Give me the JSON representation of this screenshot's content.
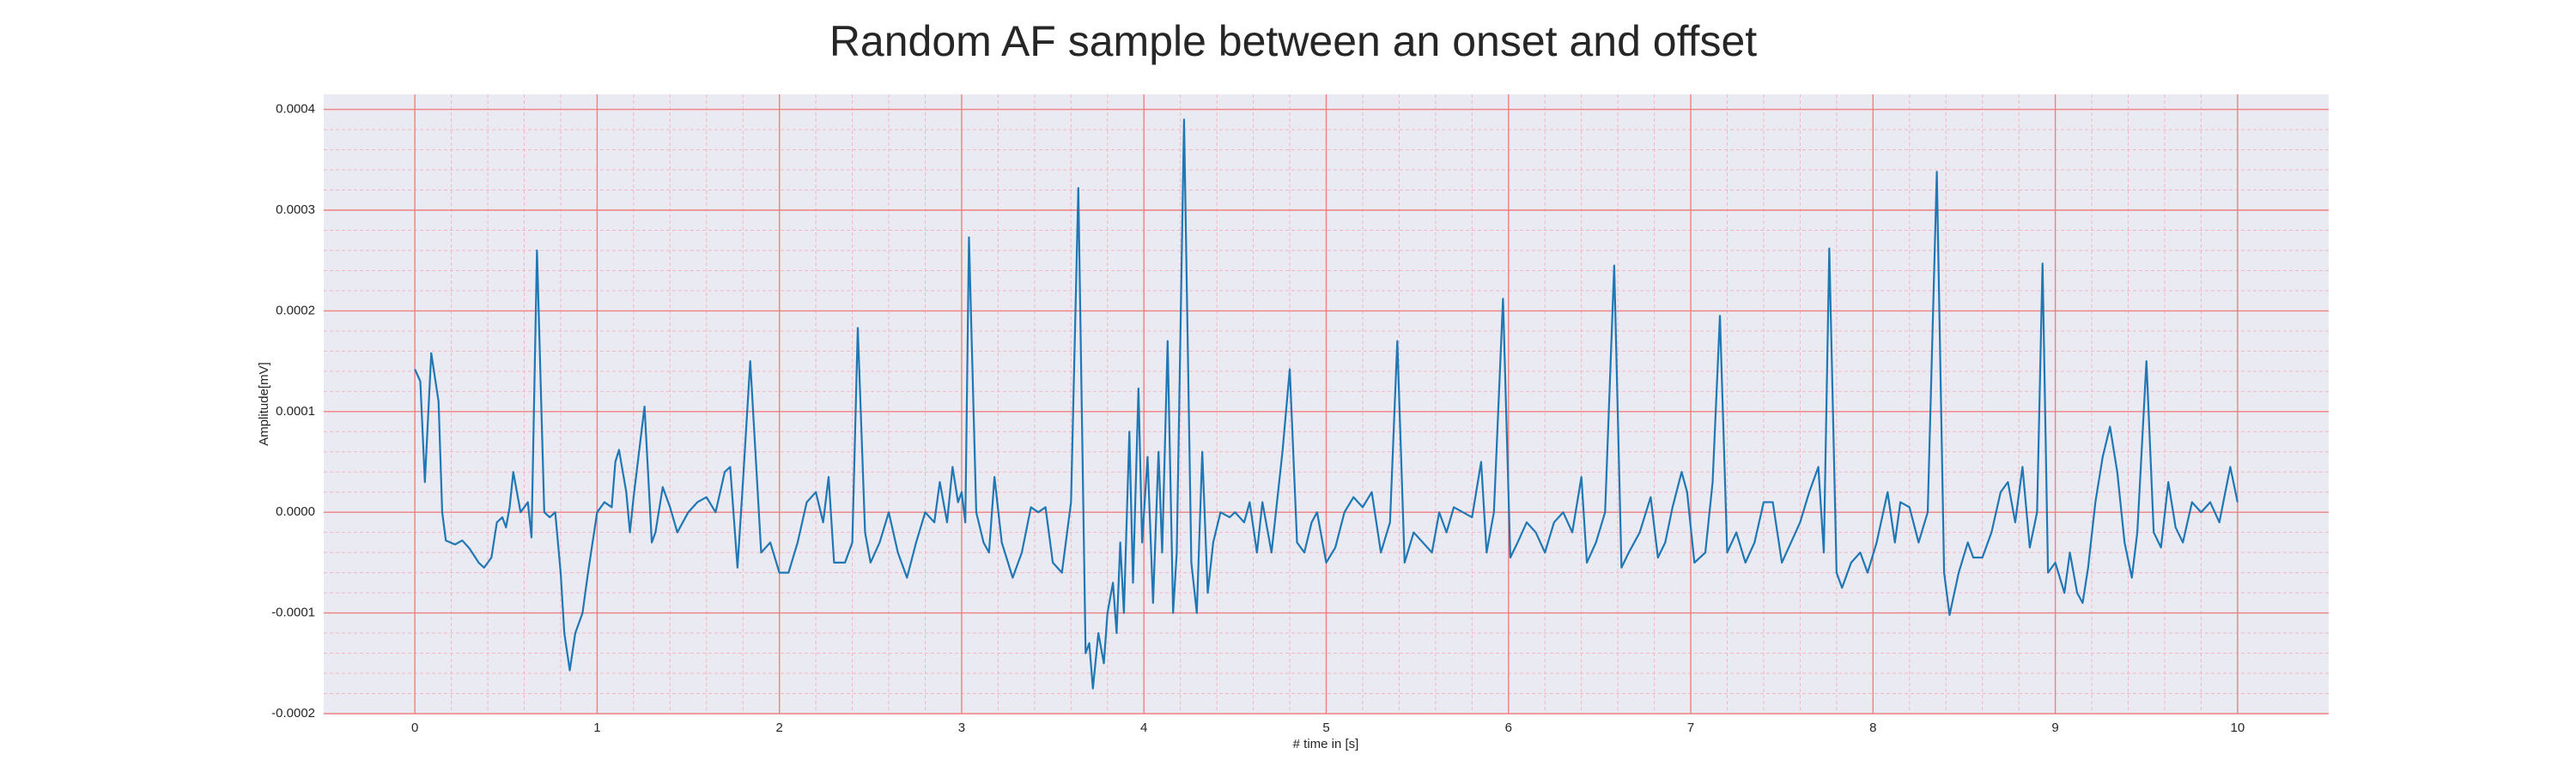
{
  "chart_data": {
    "type": "line",
    "title": "Random AF sample between an onset and offset",
    "xlabel": "# time in [s]",
    "ylabel": "Amplitude[mV]",
    "color": "#1f77b4",
    "grid": true,
    "minor_grid": true,
    "xlim": [
      -0.5,
      10.5
    ],
    "ylim": [
      -0.0002,
      0.000415
    ],
    "xticks": [
      0,
      1,
      2,
      3,
      4,
      5,
      6,
      7,
      8,
      9,
      10
    ],
    "yticks": [
      -0.0002,
      -0.0001,
      {
        "value": 0,
        "label": "0.0000"
      },
      0.0001,
      0.0002,
      0.0003,
      0.0004
    ],
    "x": [
      0,
      0.03,
      0.055,
      0.09,
      0.13,
      0.15,
      0.17,
      0.22,
      0.26,
      0.3,
      0.35,
      0.38,
      0.42,
      0.45,
      0.48,
      0.5,
      0.52,
      0.54,
      0.58,
      0.62,
      0.64,
      0.67,
      0.71,
      0.74,
      0.77,
      0.8,
      0.82,
      0.85,
      0.88,
      0.92,
      0.95,
      1.0,
      1.04,
      1.08,
      1.1,
      1.12,
      1.16,
      1.18,
      1.2,
      1.26,
      1.3,
      1.32,
      1.36,
      1.4,
      1.44,
      1.5,
      1.55,
      1.6,
      1.65,
      1.7,
      1.73,
      1.77,
      1.8,
      1.84,
      1.9,
      1.95,
      2.0,
      2.05,
      2.1,
      2.15,
      2.2,
      2.24,
      2.27,
      2.3,
      2.36,
      2.4,
      2.43,
      2.47,
      2.5,
      2.55,
      2.6,
      2.65,
      2.7,
      2.75,
      2.8,
      2.85,
      2.88,
      2.92,
      2.95,
      2.98,
      3.0,
      3.02,
      3.04,
      3.08,
      3.12,
      3.15,
      3.18,
      3.22,
      3.28,
      3.33,
      3.38,
      3.42,
      3.46,
      3.5,
      3.55,
      3.6,
      3.64,
      3.68,
      3.7,
      3.72,
      3.75,
      3.78,
      3.8,
      3.83,
      3.85,
      3.87,
      3.89,
      3.92,
      3.94,
      3.97,
      3.99,
      4.02,
      4.05,
      4.08,
      4.1,
      4.13,
      4.16,
      4.18,
      4.22,
      4.26,
      4.29,
      4.32,
      4.35,
      4.38,
      4.42,
      4.47,
      4.5,
      4.55,
      4.58,
      4.62,
      4.65,
      4.7,
      4.76,
      4.8,
      4.84,
      4.88,
      4.92,
      4.95,
      5.0,
      5.05,
      5.1,
      5.15,
      5.2,
      5.25,
      5.3,
      5.35,
      5.39,
      5.43,
      5.48,
      5.53,
      5.58,
      5.62,
      5.66,
      5.7,
      5.75,
      5.8,
      5.85,
      5.88,
      5.92,
      5.97,
      6.01,
      6.05,
      6.1,
      6.15,
      6.2,
      6.25,
      6.3,
      6.35,
      6.4,
      6.43,
      6.48,
      6.53,
      6.58,
      6.62,
      6.66,
      6.72,
      6.78,
      6.82,
      6.86,
      6.9,
      6.95,
      6.98,
      7.02,
      7.08,
      7.12,
      7.16,
      7.2,
      7.25,
      7.3,
      7.35,
      7.4,
      7.45,
      7.5,
      7.55,
      7.6,
      7.65,
      7.7,
      7.73,
      7.76,
      7.8,
      7.83,
      7.88,
      7.93,
      7.97,
      8.02,
      8.08,
      8.12,
      8.15,
      8.2,
      8.25,
      8.3,
      8.35,
      8.39,
      8.42,
      8.47,
      8.52,
      8.55,
      8.6,
      8.65,
      8.7,
      8.74,
      8.78,
      8.82,
      8.86,
      8.9,
      8.93,
      8.96,
      9.0,
      9.05,
      9.08,
      9.12,
      9.15,
      9.18,
      9.22,
      9.26,
      9.3,
      9.34,
      9.38,
      9.42,
      9.45,
      9.5,
      9.54,
      9.58,
      9.62,
      9.66,
      9.7,
      9.75,
      9.8,
      9.85,
      9.9,
      9.96,
      10.0
    ],
    "values": [
      0.000142,
      0.00013,
      3e-05,
      0.000158,
      0.00011,
      0,
      -2.8e-05,
      -3.2e-05,
      -2.8e-05,
      -3.6e-05,
      -5e-05,
      -5.5e-05,
      -4.5e-05,
      -1e-05,
      -5e-06,
      -1.5e-05,
      5e-06,
      4e-05,
      0,
      1e-05,
      -2.5e-05,
      0.00026,
      0,
      -5e-06,
      0,
      -6e-05,
      -0.00012,
      -0.000157,
      -0.00012,
      -0.0001,
      -6e-05,
      0,
      1e-05,
      5e-06,
      5e-05,
      6.2e-05,
      2e-05,
      -2e-05,
      1.5e-05,
      0.000105,
      -3e-05,
      -2e-05,
      2.5e-05,
      5e-06,
      -2e-05,
      0,
      1e-05,
      1.5e-05,
      0,
      4e-05,
      4.5e-05,
      -5.5e-05,
      3e-05,
      0.00015,
      -4e-05,
      -3e-05,
      -6e-05,
      -6e-05,
      -3e-05,
      1e-05,
      2e-05,
      -1e-05,
      3.5e-05,
      -5e-05,
      -5e-05,
      -3e-05,
      0.000183,
      -2e-05,
      -5e-05,
      -3e-05,
      0,
      -4e-05,
      -6.5e-05,
      -3e-05,
      0,
      -1e-05,
      3e-05,
      -1e-05,
      4.5e-05,
      1e-05,
      2e-05,
      -1e-05,
      0.000273,
      0,
      -3e-05,
      -4e-05,
      3.5e-05,
      -3e-05,
      -6.5e-05,
      -4e-05,
      5e-06,
      0,
      5e-06,
      -5e-05,
      -6e-05,
      1e-05,
      0.000322,
      -0.00014,
      -0.00013,
      -0.000175,
      -0.00012,
      -0.00015,
      -0.0001,
      -7e-05,
      -0.00012,
      -3e-05,
      -0.0001,
      8e-05,
      -7e-05,
      0.000123,
      -3e-05,
      5.5e-05,
      -9e-05,
      6e-05,
      -4e-05,
      0.00017,
      -0.0001,
      -4e-05,
      0.00039,
      -5e-05,
      -0.0001,
      6e-05,
      -8e-05,
      -3e-05,
      0,
      -5e-06,
      0,
      -1e-05,
      1e-05,
      -4e-05,
      1e-05,
      -4e-05,
      6e-05,
      0.000142,
      -3e-05,
      -4e-05,
      -1e-05,
      0,
      -5e-05,
      -3.5e-05,
      0,
      1.5e-05,
      5e-06,
      2e-05,
      -4e-05,
      -1e-05,
      0.00017,
      -5e-05,
      -2e-05,
      -3e-05,
      -4e-05,
      0,
      -2e-05,
      5e-06,
      0,
      -5e-06,
      5e-05,
      -4e-05,
      0,
      0.000212,
      -4.5e-05,
      -3e-05,
      -1e-05,
      -2e-05,
      -4e-05,
      -1e-05,
      0,
      -2e-05,
      3.5e-05,
      -5e-05,
      -3e-05,
      0,
      0.000245,
      -5.5e-05,
      -4e-05,
      -2e-05,
      1.5e-05,
      -4.5e-05,
      -3e-05,
      5e-06,
      4e-05,
      2e-05,
      -5e-05,
      -4e-05,
      3e-05,
      0.000195,
      -4e-05,
      -2e-05,
      -5e-05,
      -3e-05,
      1e-05,
      1e-05,
      -5e-05,
      -3e-05,
      -1e-05,
      2e-05,
      4.5e-05,
      -4e-05,
      0.000262,
      -6e-05,
      -7.5e-05,
      -5e-05,
      -4e-05,
      -6e-05,
      -3e-05,
      2e-05,
      -3e-05,
      1e-05,
      5e-06,
      -3e-05,
      0,
      0.000338,
      -6e-05,
      -0.000102,
      -6e-05,
      -3e-05,
      -4.5e-05,
      -4.5e-05,
      -2e-05,
      2e-05,
      3e-05,
      -1e-05,
      4.5e-05,
      -3.5e-05,
      0,
      0.000247,
      -6e-05,
      -5e-05,
      -8e-05,
      -4e-05,
      -8e-05,
      -9e-05,
      -5.5e-05,
      1e-05,
      5.5e-05,
      8.5e-05,
      4e-05,
      -3e-05,
      -6.5e-05,
      -2e-05,
      0.00015,
      -2e-05,
      -3.5e-05,
      3e-05,
      -1.5e-05,
      -3e-05,
      1e-05,
      0,
      1e-05,
      -1e-05,
      4.5e-05,
      1e-05
    ]
  }
}
